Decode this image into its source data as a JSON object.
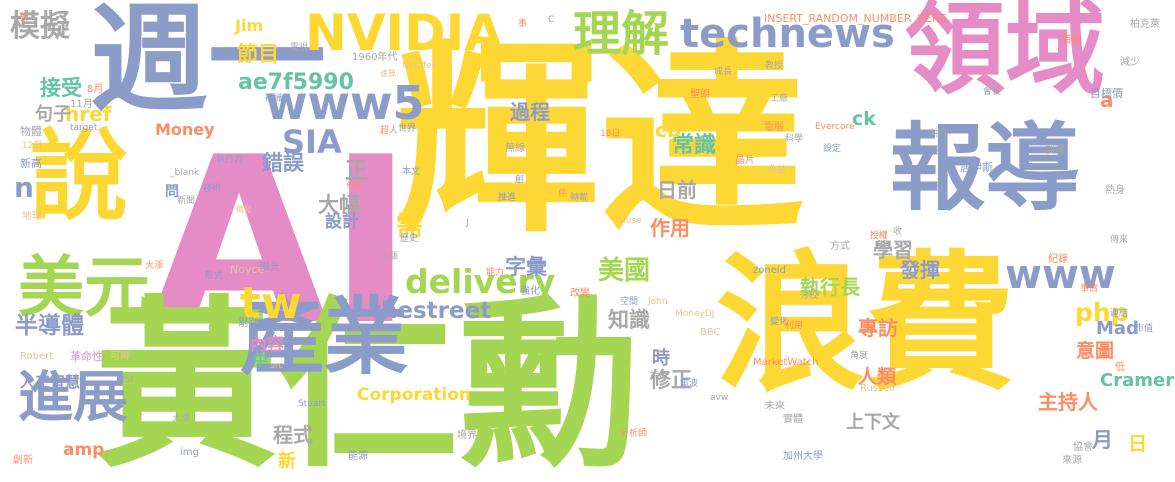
{
  "palette": {
    "yellow": "#fdd835",
    "green": "#a5d653",
    "pink": "#e58bc6",
    "slate": "#8c9cc8",
    "teal": "#66c2a5",
    "orange": "#fc8d62",
    "gray": "#a8a8a8",
    "tan": "#e5c494"
  },
  "words": [
    {
      "text": "AI",
      "color": "pink"
    },
    {
      "text": "輝達",
      "color": "yellow"
    },
    {
      "text": "黃仁勳",
      "color": "green"
    },
    {
      "text": "浪費",
      "color": "yellow"
    },
    {
      "text": "週一",
      "color": "slate"
    },
    {
      "text": "領域",
      "color": "pink"
    },
    {
      "text": "報導",
      "color": "slate"
    },
    {
      "text": "說",
      "color": "yellow"
    },
    {
      "text": "產業",
      "color": "slate"
    },
    {
      "text": "美元",
      "color": "green"
    },
    {
      "text": "NVIDIA",
      "color": "yellow"
    },
    {
      "text": "technews",
      "color": "slate"
    },
    {
      "text": "理解",
      "color": "green"
    },
    {
      "text": "www5",
      "color": "slate"
    },
    {
      "text": "www",
      "color": "slate"
    },
    {
      "text": "進展",
      "color": "slate"
    },
    {
      "text": "tw",
      "color": "yellow"
    },
    {
      "text": "delivery",
      "color": "green"
    },
    {
      "text": "模擬",
      "color": "gray"
    },
    {
      "text": "半導體",
      "color": "slate"
    },
    {
      "text": "SIA",
      "color": "slate"
    },
    {
      "text": "thestreet",
      "color": "slate"
    },
    {
      "text": "ae7f5990",
      "color": "teal"
    },
    {
      "text": "美國",
      "color": "green"
    },
    {
      "text": "php",
      "color": "yellow"
    },
    {
      "text": "n",
      "color": "slate"
    },
    {
      "text": "人工智慧",
      "color": "slate"
    },
    {
      "text": "Money",
      "color": "orange"
    },
    {
      "text": "Corporation",
      "color": "yellow"
    },
    {
      "text": "錯誤",
      "color": "slate"
    },
    {
      "text": "大幅",
      "color": "gray"
    },
    {
      "text": "設計",
      "color": "slate"
    },
    {
      "text": "常識",
      "color": "teal"
    },
    {
      "text": "字彙",
      "color": "slate"
    },
    {
      "text": "作用",
      "color": "orange"
    },
    {
      "text": "日前",
      "color": "gray"
    },
    {
      "text": "執行長",
      "color": "green"
    },
    {
      "text": "學習",
      "color": "gray"
    },
    {
      "text": "發揮",
      "color": "slate"
    },
    {
      "text": "專訪",
      "color": "orange"
    },
    {
      "text": "Mad",
      "color": "slate"
    },
    {
      "text": "意圖",
      "color": "orange"
    },
    {
      "text": "Cramer",
      "color": "teal"
    },
    {
      "text": "主持人",
      "color": "orange"
    },
    {
      "text": "上下文",
      "color": "gray"
    },
    {
      "text": "人類",
      "color": "orange"
    },
    {
      "text": "修正",
      "color": "gray"
    },
    {
      "text": "知識",
      "color": "gray"
    },
    {
      "text": "時",
      "color": "slate"
    },
    {
      "text": "月",
      "color": "slate"
    },
    {
      "text": "日",
      "color": "yellow"
    },
    {
      "text": "程式",
      "color": "gray"
    },
    {
      "text": "新",
      "color": "yellow"
    },
    {
      "text": "amp",
      "color": "orange"
    },
    {
      "text": "內容",
      "color": "pink"
    },
    {
      "text": "中",
      "color": "teal"
    },
    {
      "text": "需",
      "color": "yellow"
    },
    {
      "text": "正",
      "color": "gray"
    },
    {
      "text": "問",
      "color": "slate"
    },
    {
      "text": "cb",
      "color": "yellow"
    },
    {
      "text": "ck",
      "color": "teal"
    },
    {
      "text": "過程",
      "color": "slate"
    },
    {
      "text": "節目",
      "color": "yellow"
    },
    {
      "text": "Jim",
      "color": "yellow"
    },
    {
      "text": "href",
      "color": "yellow"
    },
    {
      "text": "接受",
      "color": "teal"
    },
    {
      "text": "句子",
      "color": "gray"
    },
    {
      "text": "a",
      "color": "orange"
    },
    {
      "text": "8月",
      "color": "orange"
    },
    {
      "text": "11月",
      "color": "gray"
    },
    {
      "text": "target",
      "color": "slate"
    },
    {
      "text": "物體",
      "color": "gray"
    },
    {
      "text": "12日",
      "color": "tan"
    },
    {
      "text": "新高",
      "color": "slate"
    },
    {
      "text": "地球",
      "color": "tan"
    },
    {
      "text": "電視",
      "color": "gray"
    },
    {
      "text": "1960年代",
      "color": "gray"
    },
    {
      "text": "辨識",
      "color": "slate"
    },
    {
      "text": "超人",
      "color": "orange"
    },
    {
      "text": "世界",
      "color": "slate"
    },
    {
      "text": "執行力",
      "color": "slate"
    },
    {
      "text": "技術",
      "color": "slate"
    },
    {
      "text": "新聞",
      "color": "gray"
    },
    {
      "text": "包括",
      "color": "orange"
    },
    {
      "text": "本文",
      "color": "slate"
    },
    {
      "text": "_blank",
      "color": "gray"
    },
    {
      "text": "價發",
      "color": "tan"
    },
    {
      "text": "Neuffer",
      "color": "tan"
    },
    {
      "text": "速算",
      "color": "tan"
    },
    {
      "text": "INSERT_RANDOM_NUMBER_HERE",
      "color": "orange"
    },
    {
      "text": "教授",
      "color": "gray"
    },
    {
      "text": "工廠",
      "color": "gray"
    },
    {
      "text": "Evercore",
      "color": "orange"
    },
    {
      "text": "目標價",
      "color": "slate"
    },
    {
      "text": "柏克萊",
      "color": "gray"
    },
    {
      "text": "首圖",
      "color": "orange"
    },
    {
      "text": "減少",
      "color": "gray"
    },
    {
      "text": "成長",
      "color": "gray"
    },
    {
      "text": "聖朗",
      "color": "orange"
    },
    {
      "text": "電腦",
      "color": "orange"
    },
    {
      "text": "科學",
      "color": "gray"
    },
    {
      "text": "會長",
      "color": "gray"
    },
    {
      "text": "井凡",
      "color": "gray"
    },
    {
      "text": "設定",
      "color": "slate"
    },
    {
      "text": "收益",
      "color": "tan"
    },
    {
      "text": "無線",
      "color": "gray"
    },
    {
      "text": "18日",
      "color": "orange"
    },
    {
      "text": "熱身",
      "color": "gray"
    },
    {
      "text": "傳來",
      "color": "gray"
    },
    {
      "text": "紀錄",
      "color": "orange"
    },
    {
      "text": "事情",
      "color": "orange"
    },
    {
      "text": "連結",
      "color": "slate"
    },
    {
      "text": "市值",
      "color": "slate"
    },
    {
      "text": "方式",
      "color": "gray"
    },
    {
      "text": "授權",
      "color": "orange"
    },
    {
      "text": "收",
      "color": "gray"
    },
    {
      "text": "Muse",
      "color": "tan"
    },
    {
      "text": "zoneid",
      "color": "slate"
    },
    {
      "text": "能力",
      "color": "orange"
    },
    {
      "text": "強化",
      "color": "slate"
    },
    {
      "text": "改變",
      "color": "orange"
    },
    {
      "text": "空間",
      "color": "slate"
    },
    {
      "text": "John",
      "color": "tan"
    },
    {
      "text": "MoneyDJ",
      "color": "tan"
    },
    {
      "text": "變化",
      "color": "slate"
    },
    {
      "text": "利用",
      "color": "orange"
    },
    {
      "text": "分校",
      "color": "gray"
    },
    {
      "text": "MarketWatch",
      "color": "orange"
    },
    {
      "text": "角度",
      "color": "gray"
    },
    {
      "text": "BBC",
      "color": "tan"
    },
    {
      "text": "Russell",
      "color": "tan"
    },
    {
      "text": "上漲",
      "color": "gray"
    },
    {
      "text": "歷史",
      "color": "slate"
    },
    {
      "text": "推進",
      "color": "slate"
    },
    {
      "text": "Noyce",
      "color": "tan"
    },
    {
      "text": "眼光",
      "color": "slate"
    },
    {
      "text": "大漲",
      "color": "orange"
    },
    {
      "text": "形式",
      "color": "slate"
    },
    {
      "text": "剛剛",
      "color": "slate"
    },
    {
      "text": "Robert",
      "color": "tan"
    },
    {
      "text": "革命性",
      "color": "pink"
    },
    {
      "text": "可卿",
      "color": "tan"
    },
    {
      "text": "ISI",
      "color": "gray"
    },
    {
      "text": "src",
      "color": "tan"
    },
    {
      "text": "指出",
      "color": "gray"
    },
    {
      "text": "電波",
      "color": "slate"
    },
    {
      "text": "avw",
      "color": "gray"
    },
    {
      "text": "Stuart",
      "color": "slate"
    },
    {
      "text": "未來",
      "color": "gray"
    },
    {
      "text": "實體",
      "color": "gray"
    },
    {
      "text": "分析師",
      "color": "orange"
    },
    {
      "text": "境界",
      "color": "gray"
    },
    {
      "text": "大漲",
      "color": "gray"
    },
    {
      "text": "img",
      "color": "slate"
    },
    {
      "text": "能源",
      "color": "slate"
    },
    {
      "text": "加州大學",
      "color": "slate"
    },
    {
      "text": "協會",
      "color": "gray"
    },
    {
      "text": "來源",
      "color": "gray"
    },
    {
      "text": "創新",
      "color": "orange"
    },
    {
      "text": "晶片",
      "color": "orange"
    },
    {
      "text": "創",
      "color": "slate"
    },
    {
      "text": "件",
      "color": "orange"
    },
    {
      "text": "C",
      "color": "slate"
    },
    {
      "text": "事",
      "color": "orange"
    },
    {
      "text": "J",
      "color": "gray"
    },
    {
      "text": "轉載",
      "color": "gray"
    },
    {
      "text": "居伊斯",
      "color": "slate"
    },
    {
      "text": "製圖",
      "color": "gray"
    },
    {
      "text": "低",
      "color": "orange"
    },
    {
      "text": "東",
      "color": "orange"
    }
  ]
}
